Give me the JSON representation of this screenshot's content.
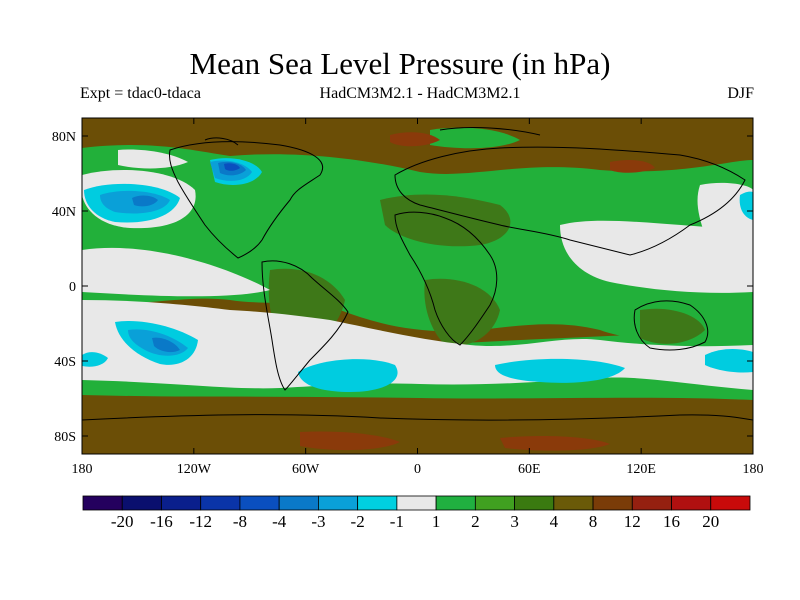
{
  "title": "Mean Sea Level Pressure (in hPa)",
  "expt_label": "Expt = tdac0-tdaca",
  "models_label": "HadCM3M2.1 - HadCM3M2.1",
  "season_label": "DJF",
  "lat_ticks": [
    "80N",
    "40N",
    "0",
    "40S",
    "80S"
  ],
  "lon_ticks": [
    "180",
    "120W",
    "60W",
    "0",
    "60E",
    "120E",
    "180"
  ],
  "colorbar": {
    "colors": [
      "#24005e",
      "#0a0f6e",
      "#0a1f8c",
      "#0a34a8",
      "#0a4fbf",
      "#0a79c8",
      "#0aa0d8",
      "#00d0e0",
      "#e8e8e8",
      "#20b040",
      "#40a020",
      "#3a7a10",
      "#6a5a08",
      "#7a3c08",
      "#952010",
      "#b01010",
      "#c80a0a"
    ],
    "labels": [
      "-20",
      "-16",
      "-12",
      "-8",
      "-4",
      "-3",
      "-2",
      "-1",
      "1",
      "2",
      "3",
      "4",
      "8",
      "12",
      "16",
      "20"
    ]
  },
  "field_colors": {
    "brown": "#6b4e06",
    "olive": "#3e7818",
    "green": "#22b03a",
    "white": "#e8e8e8",
    "cyan": "#00cce0",
    "lightblue": "#0aa0d8",
    "blue": "#0a79c8",
    "darkblue": "#0a4fbf",
    "rust": "#8a3a0a"
  }
}
